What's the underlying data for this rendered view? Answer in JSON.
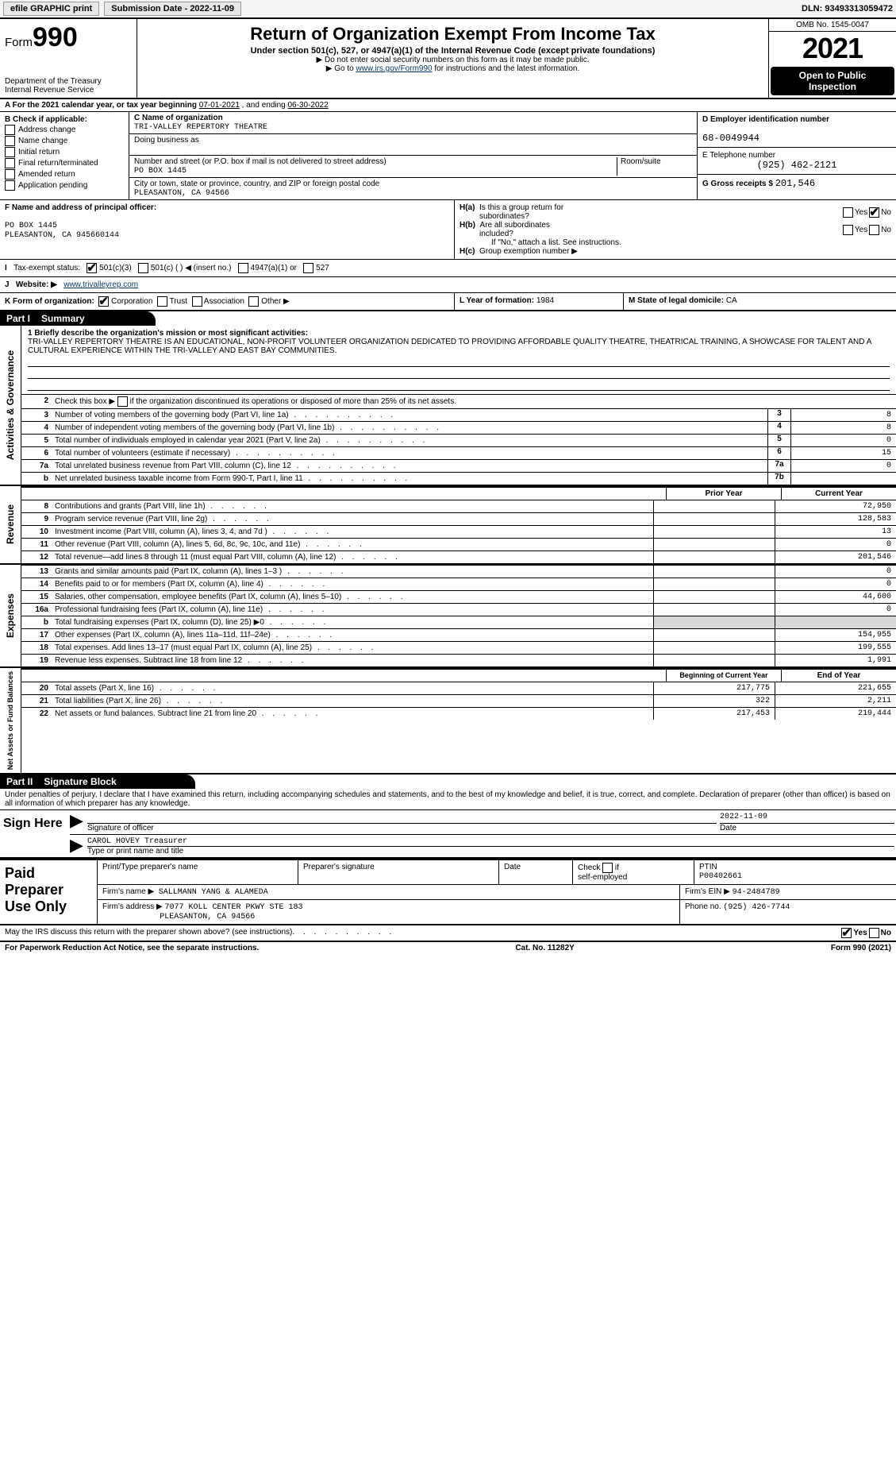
{
  "topbar": {
    "efile_label": "efile GRAPHIC print",
    "submission_label": "Submission Date - 2022-11-09",
    "dln_label": "DLN: 93493313059472"
  },
  "header": {
    "form_prefix": "Form",
    "form_number": "990",
    "title": "Return of Organization Exempt From Income Tax",
    "subtitle": "Under section 501(c), 527, or 4947(a)(1) of the Internal Revenue Code (except private foundations)",
    "note1": "▶ Do not enter social security numbers on this form as it may be made public.",
    "note2_pre": "▶ Go to ",
    "note2_link": "www.irs.gov/Form990",
    "note2_post": " for instructions and the latest information.",
    "dept": "Department of the Treasury",
    "irs": "Internal Revenue Service",
    "omb": "OMB No. 1545-0047",
    "year": "2021",
    "open1": "Open to Public",
    "open2": "Inspection"
  },
  "lineA": {
    "text_pre": "A For the 2021 calendar year, or tax year beginning ",
    "begin": "07-01-2021",
    "mid": " , and ending ",
    "end": "06-30-2022"
  },
  "colB": {
    "header": "B Check if applicable:",
    "items": [
      "Address change",
      "Name change",
      "Initial return",
      "Final return/terminated",
      "Amended return",
      "Application pending"
    ]
  },
  "colC": {
    "name_lbl": "C Name of organization",
    "name": "TRI-VALLEY REPERTORY THEATRE",
    "dba_lbl": "Doing business as",
    "dba": "",
    "street_lbl": "Number and street (or P.O. box if mail is not delivered to street address)",
    "room_lbl": "Room/suite",
    "street": "PO BOX 1445",
    "city_lbl": "City or town, state or province, country, and ZIP or foreign postal code",
    "city": "PLEASANTON, CA  94566"
  },
  "colD": {
    "ein_lbl": "D Employer identification number",
    "ein": "68-0049944",
    "phone_lbl": "E Telephone number",
    "phone": "(925) 462-2121",
    "gross_lbl": "G Gross receipts $",
    "gross": "201,546"
  },
  "rowF": {
    "lbl": "F Name and address of principal officer:",
    "line1": "PO BOX 1445",
    "line2": "PLEASANTON, CA  945660144",
    "ha": "H(a)  Is this a group return for subordinates?",
    "hb": "H(b)  Are all subordinates included?",
    "hb_note": "If \"No,\" attach a list. See instructions.",
    "hc": "H(c)  Group exemption number ▶"
  },
  "rowI": {
    "lbl": "Tax-exempt status:",
    "o1": "501(c)(3)",
    "o2": "501(c) (    ) ◀ (insert no.)",
    "o3": "4947(a)(1) or",
    "o4": "527"
  },
  "rowJ": {
    "lbl": "Website: ▶",
    "val": "www.trivalleyrep.com"
  },
  "rowK": {
    "lbl": "K Form of organization:",
    "o1": "Corporation",
    "o2": "Trust",
    "o3": "Association",
    "o4": "Other ▶",
    "l_lbl": "L Year of formation:",
    "l_val": "1984",
    "m_lbl": "M State of legal domicile:",
    "m_val": "CA"
  },
  "part1": {
    "bar": "Part I",
    "bar2": "Summary",
    "q1_lbl": "1  Briefly describe the organization's mission or most significant activities:",
    "q1_txt": "TRI-VALLEY REPERTORY THEATRE IS AN EDUCATIONAL, NON-PROFIT VOLUNTEER ORGANIZATION DEDICATED TO PROVIDING AFFORDABLE QUALITY THEATRE, THEATRICAL TRAINING, A SHOWCASE FOR TALENT AND A CULTURAL EXPERIENCE WITHIN THE TRI-VALLEY AND EAST BAY COMMUNITIES.",
    "q2": "Check this box ▶        if the organization discontinued its operations or disposed of more than 25% of its net assets.",
    "side_ag": "Activities & Governance",
    "side_rev": "Revenue",
    "side_exp": "Expenses",
    "side_net": "Net Assets or Fund Balances",
    "rows_ag": [
      {
        "n": "3",
        "t": "Number of voting members of the governing body (Part VI, line 1a)",
        "box": "3",
        "v": "8"
      },
      {
        "n": "4",
        "t": "Number of independent voting members of the governing body (Part VI, line 1b)",
        "box": "4",
        "v": "8"
      },
      {
        "n": "5",
        "t": "Total number of individuals employed in calendar year 2021 (Part V, line 2a)",
        "box": "5",
        "v": "0"
      },
      {
        "n": "6",
        "t": "Total number of volunteers (estimate if necessary)",
        "box": "6",
        "v": "15"
      },
      {
        "n": "7a",
        "t": "Total unrelated business revenue from Part VIII, column (C), line 12",
        "box": "7a",
        "v": "0"
      },
      {
        "n": "b",
        "t": "Net unrelated business taxable income from Form 990-T, Part I, line 11",
        "box": "7b",
        "v": ""
      }
    ],
    "hdr_prior": "Prior Year",
    "hdr_curr": "Current Year",
    "rows_rev": [
      {
        "n": "8",
        "t": "Contributions and grants (Part VIII, line 1h)",
        "p": "",
        "c": "72,950"
      },
      {
        "n": "9",
        "t": "Program service revenue (Part VIII, line 2g)",
        "p": "",
        "c": "128,583"
      },
      {
        "n": "10",
        "t": "Investment income (Part VIII, column (A), lines 3, 4, and 7d )",
        "p": "",
        "c": "13"
      },
      {
        "n": "11",
        "t": "Other revenue (Part VIII, column (A), lines 5, 6d, 8c, 9c, 10c, and 11e)",
        "p": "",
        "c": "0"
      },
      {
        "n": "12",
        "t": "Total revenue—add lines 8 through 11 (must equal Part VIII, column (A), line 12)",
        "p": "",
        "c": "201,546"
      }
    ],
    "rows_exp": [
      {
        "n": "13",
        "t": "Grants and similar amounts paid (Part IX, column (A), lines 1–3 )",
        "p": "",
        "c": "0"
      },
      {
        "n": "14",
        "t": "Benefits paid to or for members (Part IX, column (A), line 4)",
        "p": "",
        "c": "0"
      },
      {
        "n": "15",
        "t": "Salaries, other compensation, employee benefits (Part IX, column (A), lines 5–10)",
        "p": "",
        "c": "44,600"
      },
      {
        "n": "16a",
        "t": "Professional fundraising fees (Part IX, column (A), line 11e)",
        "p": "",
        "c": "0"
      },
      {
        "n": "b",
        "t": "Total fundraising expenses (Part IX, column (D), line 25) ▶0",
        "p": "GREY",
        "c": "GREY"
      },
      {
        "n": "17",
        "t": "Other expenses (Part IX, column (A), lines 11a–11d, 11f–24e)",
        "p": "",
        "c": "154,955"
      },
      {
        "n": "18",
        "t": "Total expenses. Add lines 13–17 (must equal Part IX, column (A), line 25)",
        "p": "",
        "c": "199,555"
      },
      {
        "n": "19",
        "t": "Revenue less expenses. Subtract line 18 from line 12",
        "p": "",
        "c": "1,991"
      }
    ],
    "hdr_begin": "Beginning of Current Year",
    "hdr_end": "End of Year",
    "rows_net": [
      {
        "n": "20",
        "t": "Total assets (Part X, line 16)",
        "p": "217,775",
        "c": "221,655"
      },
      {
        "n": "21",
        "t": "Total liabilities (Part X, line 26)",
        "p": "322",
        "c": "2,211"
      },
      {
        "n": "22",
        "t": "Net assets or fund balances. Subtract line 21 from line 20",
        "p": "217,453",
        "c": "219,444"
      }
    ]
  },
  "part2": {
    "bar": "Part II",
    "bar2": "Signature Block",
    "decl": "Under penalties of perjury, I declare that I have examined this return, including accompanying schedules and statements, and to the best of my knowledge and belief, it is true, correct, and complete. Declaration of preparer (other than officer) is based on all information of which preparer has any knowledge.",
    "sign_here": "Sign Here",
    "sig_officer": "Signature of officer",
    "sig_date": "Date",
    "sig_date_val": "2022-11-09",
    "name_title": "CAROL HOVEY Treasurer",
    "name_lbl": "Type or print name and title",
    "paid": "Paid Preparer Use Only",
    "prep_name_lbl": "Print/Type preparer's name",
    "prep_sig_lbl": "Preparer's signature",
    "date_lbl": "Date",
    "self_lbl": "Check         if self-employed",
    "ptin_lbl": "PTIN",
    "ptin": "P00402661",
    "firm_name_lbl": "Firm's name    ▶",
    "firm_name": "SALLMANN YANG & ALAMEDA",
    "firm_ein_lbl": "Firm's EIN ▶",
    "firm_ein": "94-2484789",
    "firm_addr_lbl": "Firm's address ▶",
    "firm_addr1": "7077 KOLL CENTER PKWY STE 183",
    "firm_addr2": "PLEASANTON, CA  94566",
    "firm_phone_lbl": "Phone no.",
    "firm_phone": "(925) 426-7744",
    "discuss": "May the IRS discuss this return with the preparer shown above? (see instructions)"
  },
  "footer": {
    "left": "For Paperwork Reduction Act Notice, see the separate instructions.",
    "mid": "Cat. No. 11282Y",
    "right": "Form 990 (2021)"
  },
  "colors": {
    "link": "#003b6f",
    "grey": "#d8d8d8"
  }
}
